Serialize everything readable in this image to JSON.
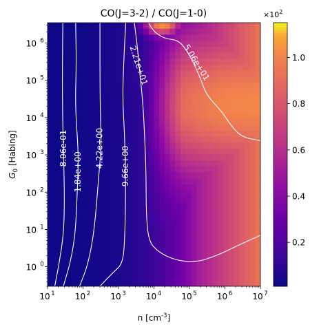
{
  "chart_data": {
    "type": "heatmap",
    "title": "CO(J=3-2) / CO(J=1-0)",
    "xlabel": "n [cm$^{-3}$]",
    "ylabel": "$G_0$ [Habing]",
    "x_scale": "log",
    "y_scale": "log",
    "xlim": [
      10,
      10000000
    ],
    "ylim": [
      0.3,
      3500000
    ],
    "x_ticks": [
      {
        "value": 10,
        "base": "10",
        "exp": "1"
      },
      {
        "value": 100,
        "base": "10",
        "exp": "2"
      },
      {
        "value": 1000,
        "base": "10",
        "exp": "3"
      },
      {
        "value": 10000,
        "base": "10",
        "exp": "4"
      },
      {
        "value": 100000,
        "base": "10",
        "exp": "5"
      },
      {
        "value": 1000000,
        "base": "10",
        "exp": "6"
      },
      {
        "value": 10000000,
        "base": "10",
        "exp": "7"
      }
    ],
    "y_ticks": [
      {
        "value": 1,
        "base": "10",
        "exp": "0"
      },
      {
        "value": 10,
        "base": "10",
        "exp": "1"
      },
      {
        "value": 100,
        "base": "10",
        "exp": "2"
      },
      {
        "value": 1000,
        "base": "10",
        "exp": "3"
      },
      {
        "value": 10000,
        "base": "10",
        "exp": "4"
      },
      {
        "value": 100000,
        "base": "10",
        "exp": "5"
      },
      {
        "value": 1000000,
        "base": "10",
        "exp": "6"
      }
    ],
    "colormap": "plasma",
    "colorbar": {
      "range": [
        0.01,
        1.15
      ],
      "ticks": [
        "0.2",
        "0.4",
        "0.6",
        "0.8",
        "1.0"
      ],
      "tick_values": [
        0.2,
        0.4,
        0.6,
        0.8,
        1.0
      ],
      "multiplier_base": "×10",
      "multiplier_exp": "2"
    },
    "contours": [
      {
        "label": "8.06e-01",
        "level": 0.806,
        "points": [
          [
            16,
            0.3
          ],
          [
            22,
            1.5
          ],
          [
            28,
            7
          ],
          [
            30,
            40
          ],
          [
            29,
            500
          ],
          [
            27,
            5000
          ],
          [
            26,
            100000
          ],
          [
            27,
            3500000
          ]
        ],
        "label_at": [
          28,
          1500
        ]
      },
      {
        "label": "1.84e+00",
        "level": 1.84,
        "points": [
          [
            28,
            0.3
          ],
          [
            48,
            1.8
          ],
          [
            62,
            10
          ],
          [
            70,
            150
          ],
          [
            75,
            1000
          ],
          [
            60,
            20000
          ],
          [
            65,
            300000
          ],
          [
            62,
            3500000
          ]
        ],
        "label_at": [
          72,
          350
        ]
      },
      {
        "label": "4.22e+00",
        "level": 4.22,
        "points": [
          [
            80,
            0.3
          ],
          [
            140,
            1.2
          ],
          [
            210,
            10
          ],
          [
            270,
            200
          ],
          [
            330,
            2000
          ],
          [
            310,
            10000
          ],
          [
            300,
            100000
          ],
          [
            300,
            3500000
          ]
        ],
        "label_at": [
          290,
          1500
        ]
      },
      {
        "label": "9.66e+00",
        "level": 9.66,
        "points": [
          [
            300,
            0.3
          ],
          [
            700,
            0.7
          ],
          [
            1300,
            1.2
          ],
          [
            1500,
            5
          ],
          [
            1600,
            100
          ],
          [
            1500,
            3000
          ],
          [
            1300,
            30000
          ],
          [
            1400,
            300000
          ],
          [
            1600,
            3500000
          ]
        ],
        "label_at": [
          1550,
          500
        ]
      },
      {
        "label": "2.21e+01",
        "level": 22.1,
        "points": [
          [
            2800,
            3500000
          ],
          [
            3400,
            800000
          ],
          [
            4000,
            150000
          ],
          [
            4800,
            30000
          ],
          [
            5500,
            3000
          ],
          [
            6000,
            300
          ],
          [
            6000,
            30
          ],
          [
            7000,
            5
          ],
          [
            13000,
            2.5
          ],
          [
            40000,
            1.5
          ],
          [
            150000,
            1.3
          ],
          [
            600000,
            2
          ],
          [
            2000000,
            3.5
          ],
          [
            10000000,
            7
          ]
        ],
        "label_at": [
          3700,
          250000
        ]
      },
      {
        "label": "5.06e+01",
        "level": 50.6,
        "points": [
          [
            7000,
            3500000
          ],
          [
            10000,
            2000000
          ],
          [
            20000,
            1300000
          ],
          [
            50000,
            1200000
          ],
          [
            100000,
            500000
          ],
          [
            200000,
            120000
          ],
          [
            300000,
            40000
          ],
          [
            800000,
            15000
          ],
          [
            1500000,
            6000
          ],
          [
            3000000,
            3000
          ],
          [
            10000000,
            2400
          ]
        ],
        "label_at": [
          160000,
          300000
        ]
      }
    ],
    "description_peak": {
      "x": 15000,
      "y": 3500000,
      "value": 1.15
    }
  }
}
